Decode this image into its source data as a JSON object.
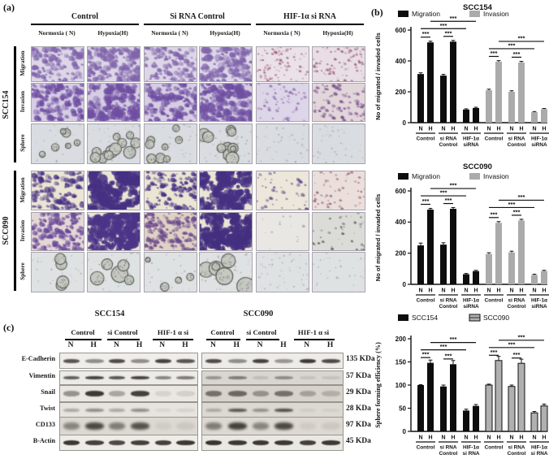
{
  "panel_a": {
    "label": "(a)",
    "group_headers": [
      "Control",
      "Si RNA Control",
      "HIF-1α si RNA"
    ],
    "condition_headers": [
      "Normoxia ( N)",
      "Hypoxia(H)",
      "Normoxia ( N)",
      "Hypoxia(H)",
      "Normoxia ( N)",
      "Hypoxia(H)"
    ],
    "cell_lines": [
      {
        "name": "SCC154",
        "rows": [
          {
            "label": "Migration",
            "kind": "blobs",
            "bg": "#ddd6e7",
            "c": "#8165ac",
            "cols": [
              {
                "d": 110,
                "s": 2.4
              },
              {
                "d": 140,
                "s": 2.8
              },
              {
                "d": 100,
                "s": 2.4
              },
              {
                "d": 130,
                "s": 3.0
              },
              {
                "d": 100,
                "s": 1.1,
                "c": "#a4607f",
                "bg": "#eae2e8"
              },
              {
                "d": 90,
                "s": 1.2,
                "c": "#9c6080",
                "bg": "#e8dee4"
              }
            ]
          },
          {
            "label": "Invasion",
            "kind": "blobs",
            "bg": "#d6cde3",
            "c": "#6f4fa2",
            "cols": [
              {
                "d": 120,
                "s": 2.8
              },
              {
                "d": 150,
                "s": 3.2
              },
              {
                "d": 110,
                "s": 2.8
              },
              {
                "d": 140,
                "s": 3.4
              },
              {
                "d": 60,
                "s": 1.3,
                "c": "#8a6cab",
                "bg": "#ddd5e8"
              },
              {
                "d": 85,
                "s": 1.6,
                "c": "#7a548e",
                "bg": "#e2d6da"
              }
            ]
          },
          {
            "label": "Sphere",
            "kind": "spheres",
            "bg": "#d9dce0",
            "c": "#5d625b",
            "cols": [
              {
                "d": 6,
                "s": 4,
                "sp": 25
              },
              {
                "d": 12,
                "s": 5,
                "sp": 30
              },
              {
                "d": 8,
                "s": 4,
                "sp": 28
              },
              {
                "d": 11,
                "s": 5,
                "sp": 40
              },
              {
                "d": 0,
                "s": 2,
                "sp": 50
              },
              {
                "d": 0,
                "s": 2,
                "sp": 40
              }
            ]
          }
        ]
      },
      {
        "name": "SCC090",
        "rows": [
          {
            "label": "Migration",
            "kind": "blobs",
            "bg": "#ebe5d4",
            "c": "#463183",
            "cols": [
              {
                "d": 90,
                "s": 2.6
              },
              {
                "d": 55,
                "s": 5.5
              },
              {
                "d": 120,
                "s": 2.0
              },
              {
                "d": 65,
                "s": 5.0
              },
              {
                "d": 40,
                "s": 1.6,
                "bg": "#ece7da",
                "c": "#5a4488"
              },
              {
                "d": 60,
                "s": 1.2,
                "c": "#94607e",
                "bg": "#eadfda"
              }
            ]
          },
          {
            "label": "Invasion",
            "kind": "blobs",
            "bg": "#e4d8d6",
            "c": "#6a4a99",
            "cols": [
              {
                "d": 140,
                "s": 2.2
              },
              {
                "d": 75,
                "s": 4.6,
                "bg": "#ece4d6",
                "c": "#4c3588"
              },
              {
                "d": 150,
                "s": 2.0,
                "bg": "#dfd2c4",
                "c": "#6c4a8e"
              },
              {
                "d": 85,
                "s": 4.8,
                "bg": "#ece4d6",
                "c": "#443080"
              },
              {
                "d": 15,
                "s": 1.1,
                "bg": "#e9e7e3",
                "c": "#9a96a0"
              },
              {
                "d": 40,
                "s": 1.2,
                "bg": "#dbdcd8",
                "c": "#5f6058"
              }
            ]
          },
          {
            "label": "Sphere",
            "kind": "spheres",
            "bg": "#dfe2e3",
            "c": "#54584f",
            "cols": [
              {
                "d": 4,
                "s": 5,
                "sp": 30
              },
              {
                "d": 5,
                "s": 7,
                "sp": 35
              },
              {
                "d": 4,
                "s": 4,
                "sp": 25
              },
              {
                "d": 6,
                "s": 7,
                "sp": 60
              },
              {
                "d": 0,
                "s": 2,
                "sp": 55
              },
              {
                "d": 0,
                "s": 2,
                "sp": 35
              }
            ]
          }
        ]
      }
    ]
  },
  "panel_b": {
    "label": "(b)"
  },
  "chart_data": [
    {
      "type": "bar",
      "title": "SCC154",
      "ylabel": "No of migrated / invaded cells",
      "ylim": [
        0,
        600
      ],
      "yticks": [
        0,
        200,
        400,
        600
      ],
      "bar_labels": [
        "N",
        "H"
      ],
      "group_labels": [
        [
          "Control"
        ],
        [
          "si RNA",
          "Control"
        ],
        [
          "HIF-1α",
          "siRNA"
        ]
      ],
      "legend_position": "top",
      "grid": false,
      "series": [
        {
          "name": "Migration",
          "color": "#0d0d0d",
          "values": [
            315,
            520,
            305,
            525,
            85,
            95
          ],
          "errors": [
            8,
            8,
            8,
            8,
            5,
            5
          ]
        },
        {
          "name": "Invasion",
          "color": "#ababab",
          "values": [
            210,
            395,
            200,
            390,
            68,
            88
          ],
          "errors": [
            7,
            7,
            7,
            7,
            4,
            4
          ]
        }
      ],
      "sig_label": "***",
      "sig_lines": [
        {
          "cluster": 0,
          "a": 0,
          "b": 1,
          "lvl": 0
        },
        {
          "cluster": 0,
          "a": 2,
          "b": 3,
          "lvl": 0
        },
        {
          "cluster": 0,
          "a": 0,
          "b": 4,
          "lvl": 1
        },
        {
          "cluster": 0,
          "a": 1,
          "b": 5,
          "lvl": 2
        },
        {
          "cluster": 1,
          "a": 0,
          "b": 1,
          "lvl": 0
        },
        {
          "cluster": 1,
          "a": 2,
          "b": 3,
          "lvl": 0
        },
        {
          "cluster": 1,
          "a": 0,
          "b": 4,
          "lvl": 1
        },
        {
          "cluster": 1,
          "a": 1,
          "b": 5,
          "lvl": 2
        }
      ]
    },
    {
      "type": "bar",
      "title": "SCC090",
      "ylabel": "No of migrated / invaded cells",
      "ylim": [
        0,
        600
      ],
      "yticks": [
        0,
        200,
        400,
        600
      ],
      "bar_labels": [
        "N",
        "H"
      ],
      "group_labels": [
        [
          "Control"
        ],
        [
          "si RNA",
          "Control"
        ],
        [
          "HIF-1α",
          "siRNA"
        ]
      ],
      "legend_position": "top",
      "grid": false,
      "series": [
        {
          "name": "Migration",
          "color": "#0d0d0d",
          "values": [
            250,
            480,
            255,
            485,
            65,
            85
          ],
          "errors": [
            15,
            8,
            12,
            8,
            5,
            5
          ]
        },
        {
          "name": "Invasion",
          "color": "#ababab",
          "values": [
            195,
            395,
            205,
            410,
            60,
            85
          ],
          "errors": [
            8,
            8,
            8,
            8,
            5,
            5
          ]
        }
      ],
      "sig_label": "***",
      "sig_lines": [
        {
          "cluster": 0,
          "a": 0,
          "b": 1,
          "lvl": 0
        },
        {
          "cluster": 0,
          "a": 2,
          "b": 3,
          "lvl": 0
        },
        {
          "cluster": 0,
          "a": 0,
          "b": 4,
          "lvl": 1
        },
        {
          "cluster": 0,
          "a": 1,
          "b": 5,
          "lvl": 2
        },
        {
          "cluster": 1,
          "a": 0,
          "b": 1,
          "lvl": 0
        },
        {
          "cluster": 1,
          "a": 2,
          "b": 3,
          "lvl": 0
        },
        {
          "cluster": 1,
          "a": 0,
          "b": 4,
          "lvl": 1
        },
        {
          "cluster": 1,
          "a": 1,
          "b": 5,
          "lvl": 2
        }
      ]
    },
    {
      "type": "bar",
      "title": "",
      "ylabel": "Sphere forming efficiency (%)",
      "ylim": [
        0,
        200
      ],
      "yticks": [
        0,
        50,
        100,
        150,
        200
      ],
      "bar_labels": [
        "N",
        "H"
      ],
      "group_labels": [
        [
          "Control"
        ],
        [
          "si RNA",
          "Control"
        ],
        [
          "HIF-1α",
          "si RNA"
        ]
      ],
      "legend_position": "top",
      "grid": false,
      "series": [
        {
          "name": "SCC154",
          "color": "#0d0d0d",
          "values": [
            100,
            148,
            97,
            145,
            45,
            55
          ],
          "errors": [
            1,
            6,
            3,
            8,
            3,
            3
          ]
        },
        {
          "name": "SCC090",
          "color": "#b0b0b0",
          "border": "#111111",
          "values": [
            100,
            153,
            97,
            147,
            40,
            55
          ],
          "errors": [
            2,
            9,
            3,
            9,
            3,
            4
          ]
        }
      ],
      "sig_label": "***",
      "sig_lines": [
        {
          "cluster": 0,
          "a": 0,
          "b": 1,
          "lvl": 0
        },
        {
          "cluster": 0,
          "a": 2,
          "b": 3,
          "lvl": 0
        },
        {
          "cluster": 0,
          "a": 0,
          "b": 4,
          "lvl": 1
        },
        {
          "cluster": 0,
          "a": 1,
          "b": 5,
          "lvl": 2
        },
        {
          "cluster": 1,
          "a": 0,
          "b": 1,
          "lvl": 0
        },
        {
          "cluster": 1,
          "a": 2,
          "b": 3,
          "lvl": 0
        },
        {
          "cluster": 1,
          "a": 0,
          "b": 4,
          "lvl": 1
        },
        {
          "cluster": 1,
          "a": 1,
          "b": 5,
          "lvl": 2
        }
      ]
    }
  ],
  "panel_c": {
    "label": "(c)",
    "groups": [
      {
        "title": "SCC154",
        "lane_headers": [
          "Control",
          "si Control",
          "HIF-1 α si"
        ],
        "lanes": [
          "N",
          "H",
          "N",
          "H",
          "N",
          "H"
        ]
      },
      {
        "title": "SCC090",
        "lane_headers": [
          "Control",
          "si Control",
          "HIF-1 α si"
        ],
        "lanes": [
          "N",
          "H",
          "N",
          "H",
          "N",
          "H"
        ]
      }
    ],
    "rows": [
      {
        "protein": "E-Cadherin",
        "kda": "135 KDa",
        "bg": "#f0eeea",
        "bg_right": "#eeece8",
        "bh": 5,
        "left": [
          0.8,
          0.5,
          0.85,
          0.5,
          0.9,
          0.8
        ],
        "right": [
          0.85,
          0.5,
          0.9,
          0.45,
          0.95,
          0.85
        ]
      },
      {
        "protein": "Vimentin",
        "kda": "57 KDa",
        "bg": "#edebe8",
        "bg_right": "#d9d5d0",
        "bh": 4,
        "left": [
          0.75,
          0.9,
          0.8,
          0.9,
          0.55,
          0.6
        ],
        "right": [
          0.4,
          0.55,
          0.15,
          0.45,
          0.12,
          0.12
        ]
      },
      {
        "protein": "Snail",
        "kda": "29 KDa",
        "bg": "#eae7e3",
        "bg_right": "#d8d2cc",
        "bh": 7,
        "left": [
          0.45,
          0.95,
          0.35,
          0.9,
          0.1,
          0.12
        ],
        "right": [
          0.6,
          0.65,
          0.4,
          0.6,
          0.3,
          0.22
        ]
      },
      {
        "protein": "Twist",
        "kda": "28 KDa",
        "bg": "#e7e4df",
        "bg_right": "#dcd8d2",
        "bh": 4,
        "left": [
          0.35,
          0.5,
          0.35,
          0.5,
          0.08,
          0.1
        ],
        "right": [
          0.3,
          0.8,
          0.45,
          0.85,
          0.08,
          0.06
        ]
      },
      {
        "protein": "CD133",
        "kda": "97 KDa",
        "bg": "#ddd8d2",
        "bg_right": "#ddd8d2",
        "bh": 9,
        "left": [
          0.5,
          0.85,
          0.55,
          0.8,
          0.07,
          0.1
        ],
        "right": [
          0.55,
          0.9,
          0.5,
          0.85,
          0.08,
          0.1
        ]
      },
      {
        "protein": "B-Actin",
        "kda": "45 KDa",
        "bg": "#eeece8",
        "bg_right": "#eae8e2",
        "bh": 6,
        "left": [
          0.95,
          0.9,
          0.85,
          0.9,
          0.9,
          0.95
        ],
        "right": [
          0.97,
          0.95,
          0.95,
          0.95,
          0.9,
          0.95
        ]
      }
    ]
  }
}
